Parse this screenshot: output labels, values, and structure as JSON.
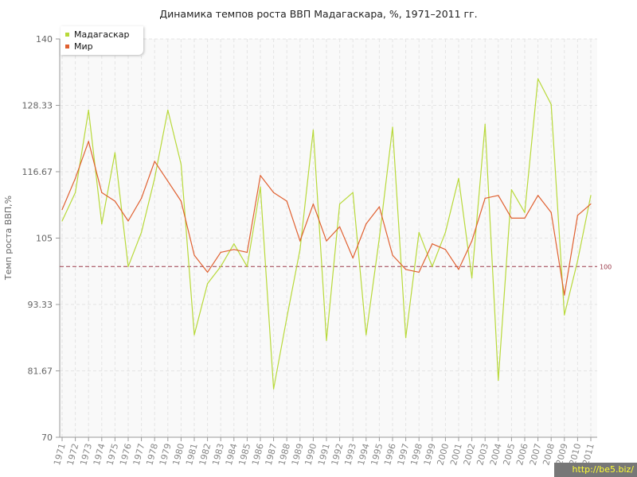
{
  "chart_data": {
    "type": "line",
    "title": "Динамика темпов роста ВВП Мадагаскара, %, 1971–2011 гг.",
    "xlabel": "",
    "ylabel": "Темп роста ВВП,%",
    "ylim": [
      70,
      140
    ],
    "yticks": [
      "70",
      "81.67",
      "93.33",
      "105",
      "116.67",
      "128.33",
      "140"
    ],
    "categories": [
      "1971",
      "1972",
      "1973",
      "1974",
      "1975",
      "1976",
      "1977",
      "1978",
      "1979",
      "1980",
      "1981",
      "1982",
      "1983",
      "1984",
      "1985",
      "1986",
      "1987",
      "1988",
      "1989",
      "1990",
      "1991",
      "1992",
      "1993",
      "1994",
      "1995",
      "1996",
      "1997",
      "1998",
      "1999",
      "2000",
      "2001",
      "2002",
      "2003",
      "2004",
      "2005",
      "2006",
      "2007",
      "2008",
      "2009",
      "2010",
      "2011"
    ],
    "series": [
      {
        "name": "Мадагаскар",
        "color": "#b8d93a",
        "values": [
          108,
          113,
          127.5,
          107.5,
          120,
          100,
          106,
          115.5,
          127.5,
          118,
          88,
          97,
          100,
          104,
          100,
          114,
          78.5,
          91,
          103,
          124,
          87,
          111,
          113,
          88,
          105,
          124.5,
          87.5,
          106,
          100,
          106,
          115.5,
          98,
          125,
          80,
          113.5,
          109.5,
          133,
          128.5,
          91.5,
          101,
          112.5
        ]
      },
      {
        "name": "Мир",
        "color": "#e06030",
        "values": [
          110,
          115.5,
          122,
          113,
          111.5,
          108,
          112,
          118.5,
          115,
          111.5,
          102,
          99,
          102.5,
          103,
          102.5,
          116,
          113,
          111.5,
          104.5,
          111,
          104.5,
          107,
          101.5,
          107.5,
          110.5,
          102,
          99.5,
          99,
          104,
          103,
          99.5,
          104.5,
          112,
          112.5,
          108.5,
          108.5,
          112.5,
          109.5,
          95,
          109,
          111
        ]
      }
    ],
    "reference_line": {
      "value": 100,
      "label": "100",
      "color": "#9b3a4a"
    },
    "grid": true,
    "legend_position": "top-left"
  },
  "watermark": "http://be5.biz/"
}
